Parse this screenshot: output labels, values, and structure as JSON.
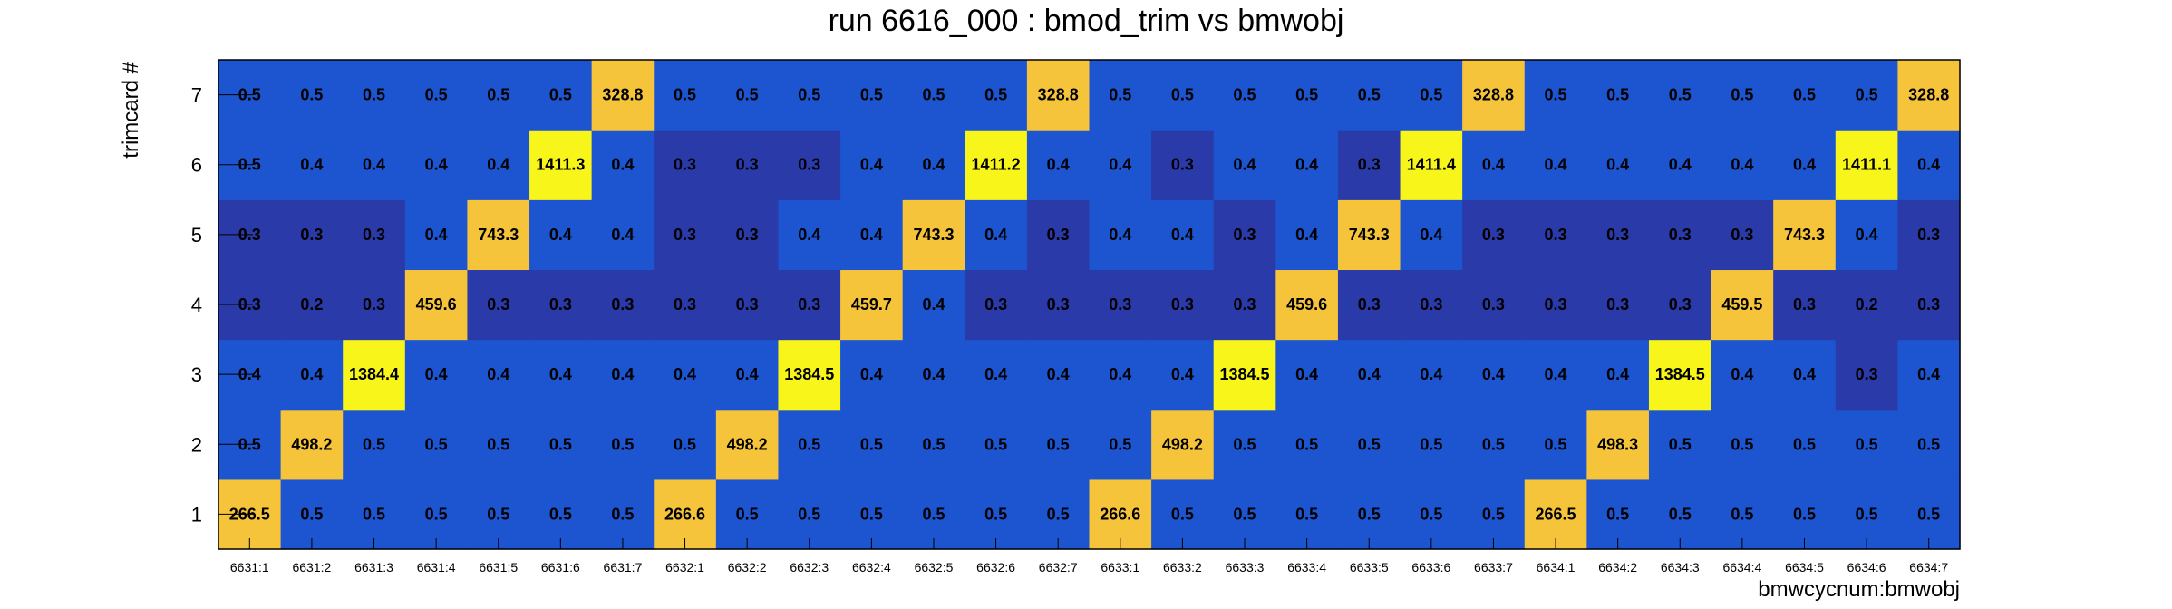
{
  "chart_data": {
    "type": "heatmap",
    "title": "run 6616_000 : bmod_trim vs bmwobj",
    "xlabel": "bmwcycnum:bmwobj",
    "ylabel": "trimcard #",
    "x_categories": [
      "6631:1",
      "6631:2",
      "6631:3",
      "6631:4",
      "6631:5",
      "6631:6",
      "6631:7",
      "6632:1",
      "6632:2",
      "6632:3",
      "6632:4",
      "6632:5",
      "6632:6",
      "6632:7",
      "6633:1",
      "6633:2",
      "6633:3",
      "6633:4",
      "6633:5",
      "6633:6",
      "6633:7",
      "6634:1",
      "6634:2",
      "6634:3",
      "6634:4",
      "6634:5",
      "6634:6",
      "6634:7"
    ],
    "y_categories": [
      "1",
      "2",
      "3",
      "4",
      "5",
      "6",
      "7"
    ],
    "values": [
      [
        "266.5",
        "0.5",
        "0.5",
        "0.5",
        "0.5",
        "0.5",
        "0.5",
        "266.6",
        "0.5",
        "0.5",
        "0.5",
        "0.5",
        "0.5",
        "0.5",
        "266.6",
        "0.5",
        "0.5",
        "0.5",
        "0.5",
        "0.5",
        "0.5",
        "266.5",
        "0.5",
        "0.5",
        "0.5",
        "0.5",
        "0.5",
        "0.5"
      ],
      [
        "0.5",
        "498.2",
        "0.5",
        "0.5",
        "0.5",
        "0.5",
        "0.5",
        "0.5",
        "498.2",
        "0.5",
        "0.5",
        "0.5",
        "0.5",
        "0.5",
        "0.5",
        "498.2",
        "0.5",
        "0.5",
        "0.5",
        "0.5",
        "0.5",
        "0.5",
        "498.3",
        "0.5",
        "0.5",
        "0.5",
        "0.5",
        "0.5"
      ],
      [
        "0.4",
        "0.4",
        "1384.4",
        "0.4",
        "0.4",
        "0.4",
        "0.4",
        "0.4",
        "0.4",
        "1384.5",
        "0.4",
        "0.4",
        "0.4",
        "0.4",
        "0.4",
        "0.4",
        "1384.5",
        "0.4",
        "0.4",
        "0.4",
        "0.4",
        "0.4",
        "0.4",
        "1384.5",
        "0.4",
        "0.4",
        "0.3",
        "0.4"
      ],
      [
        "0.3",
        "0.2",
        "0.3",
        "459.6",
        "0.3",
        "0.3",
        "0.3",
        "0.3",
        "0.3",
        "0.3",
        "459.7",
        "0.4",
        "0.3",
        "0.3",
        "0.3",
        "0.3",
        "0.3",
        "459.6",
        "0.3",
        "0.3",
        "0.3",
        "0.3",
        "0.3",
        "0.3",
        "459.5",
        "0.3",
        "0.2",
        "0.3"
      ],
      [
        "0.3",
        "0.3",
        "0.3",
        "0.4",
        "743.3",
        "0.4",
        "0.4",
        "0.3",
        "0.3",
        "0.4",
        "0.4",
        "743.3",
        "0.4",
        "0.3",
        "0.4",
        "0.4",
        "0.3",
        "0.4",
        "743.3",
        "0.4",
        "0.3",
        "0.3",
        "0.3",
        "0.3",
        "0.3",
        "743.3",
        "0.4",
        "0.3"
      ],
      [
        "0.5",
        "0.4",
        "0.4",
        "0.4",
        "0.4",
        "1411.3",
        "0.4",
        "0.3",
        "0.3",
        "0.3",
        "0.4",
        "0.4",
        "1411.2",
        "0.4",
        "0.4",
        "0.3",
        "0.4",
        "0.4",
        "0.3",
        "1411.4",
        "0.4",
        "0.4",
        "0.4",
        "0.4",
        "0.4",
        "0.4",
        "1411.1",
        "0.4"
      ],
      [
        "0.5",
        "0.5",
        "0.5",
        "0.5",
        "0.5",
        "0.5",
        "328.8",
        "0.5",
        "0.5",
        "0.5",
        "0.5",
        "0.5",
        "0.5",
        "328.8",
        "0.5",
        "0.5",
        "0.5",
        "0.5",
        "0.5",
        "0.5",
        "328.8",
        "0.5",
        "0.5",
        "0.5",
        "0.5",
        "0.5",
        "0.5",
        "328.8"
      ]
    ],
    "colors": {
      "dark_blue": "#2a3aa8",
      "blue": "#1c55cf",
      "orange": "#f5c43a",
      "yellow": "#f8f51a"
    },
    "grid": false,
    "legend": "none"
  }
}
